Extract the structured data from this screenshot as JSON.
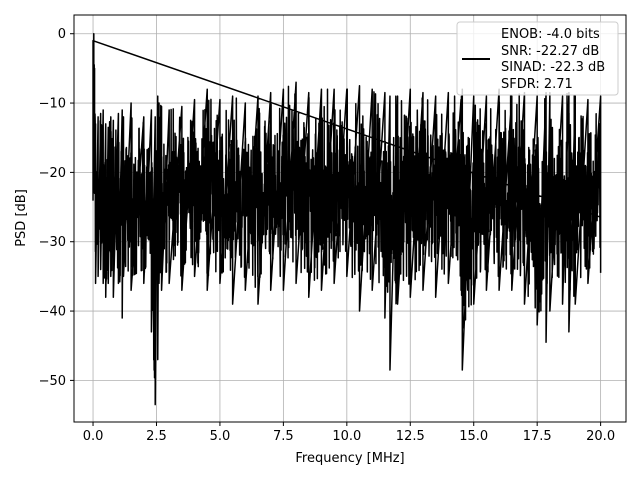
{
  "chart_data": {
    "type": "line",
    "title": "",
    "xlabel": "Frequency [MHz]",
    "ylabel": "PSD [dB]",
    "xlim": [
      -0.75,
      21.0
    ],
    "ylim": [
      -56.0,
      2.7
    ],
    "x_ticks": [
      0.0,
      2.5,
      5.0,
      7.5,
      10.0,
      12.5,
      15.0,
      17.5,
      20.0
    ],
    "x_tick_labels": [
      "0.0",
      "2.5",
      "5.0",
      "7.5",
      "10.0",
      "12.5",
      "15.0",
      "17.5",
      "20.0"
    ],
    "y_ticks": [
      0,
      -10,
      -20,
      -30,
      -40,
      -50
    ],
    "y_tick_labels": [
      "0",
      "−10",
      "−20",
      "−30",
      "−40",
      "−50"
    ],
    "grid": true,
    "legend_placement": "top-right",
    "legend_lines": [
      "ENOB: -4.0 bits",
      "SNR: -22.27 dB",
      "SINAD: -22.3 dB",
      "SFDR: 2.71"
    ],
    "series": [
      {
        "color": "#000000",
        "x": [
          0.0,
          0.03,
          0.06,
          0.1,
          0.2,
          0.3,
          0.4,
          0.5,
          0.6,
          0.7,
          0.8,
          1.0,
          1.15,
          1.2,
          1.5,
          2.0,
          2.3,
          2.45,
          2.55,
          2.6,
          2.7,
          3.0,
          3.5,
          4.0,
          4.5,
          5.0,
          5.5,
          6.0,
          6.5,
          7.0,
          7.5,
          8.0,
          8.5,
          9.0,
          9.5,
          10.0,
          10.5,
          11.0,
          11.5,
          11.7,
          12.0,
          12.5,
          13.0,
          13.5,
          14.0,
          14.5,
          14.55,
          15.0,
          15.5,
          16.0,
          16.5,
          17.0,
          17.5,
          17.85,
          18.0,
          18.5,
          18.75,
          19.0,
          19.5,
          20.0
        ],
        "y_max": [
          -1.0,
          0.0,
          -5.0,
          -13.0,
          -12.0,
          -11.5,
          -11.0,
          -13.0,
          -13.5,
          -12.0,
          -12.5,
          -11.5,
          -11.0,
          -12.0,
          -10.0,
          -12.0,
          -11.0,
          -12.0,
          -9.0,
          -10.0,
          -10.5,
          -11.0,
          -10.5,
          -9.5,
          -8.0,
          -9.5,
          -9.0,
          -10.0,
          -9.0,
          -8.5,
          -8.0,
          -7.0,
          -8.5,
          -8.0,
          -8.0,
          -8.0,
          -7.5,
          -8.0,
          -8.5,
          -9.0,
          -9.0,
          -8.0,
          -8.5,
          -9.0,
          -8.5,
          -9.5,
          -8.0,
          -9.0,
          -9.0,
          -8.0,
          -9.0,
          -8.5,
          -9.0,
          -8.5,
          -8.5,
          -9.0,
          -8.5,
          -9.0,
          -9.5,
          -9.0
        ],
        "y_min": [
          -24.0,
          -20.0,
          -23.0,
          -36.0,
          -35.0,
          -34.0,
          -36.0,
          -38.0,
          -36.0,
          -35.0,
          -38.0,
          -36.0,
          -41.0,
          -35.0,
          -37.0,
          -36.0,
          -43.0,
          -53.5,
          -47.0,
          -36.0,
          -37.0,
          -36.0,
          -37.0,
          -35.0,
          -37.0,
          -36.0,
          -39.0,
          -37.0,
          -39.0,
          -37.0,
          -37.0,
          -36.0,
          -38.0,
          -37.0,
          -36.0,
          -35.0,
          -40.0,
          -37.0,
          -41.0,
          -48.5,
          -39.0,
          -38.0,
          -37.0,
          -38.0,
          -36.0,
          -37.0,
          -48.5,
          -39.0,
          -37.0,
          -37.0,
          -37.0,
          -39.0,
          -42.0,
          -44.5,
          -40.0,
          -39.0,
          -43.0,
          -39.0,
          -36.0,
          -34.5
        ]
      }
    ]
  }
}
